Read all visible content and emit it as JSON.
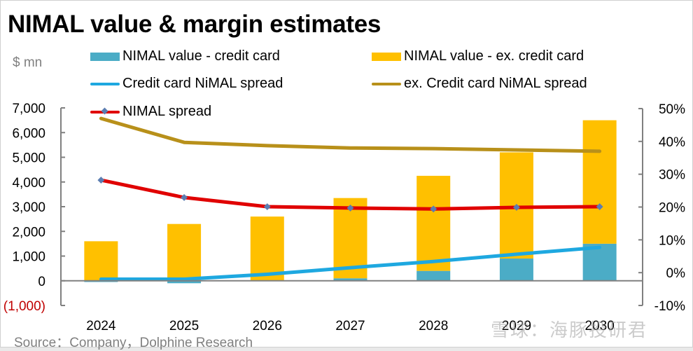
{
  "title": "NIMAL value & margin estimates",
  "unit_label": "$ mn",
  "footer": "Source：Company，Dolphine Research",
  "watermark": "雪球：海豚投研君",
  "legend": [
    {
      "label": "NIMAL value -  credit card",
      "type": "bar",
      "color": "#4bacc6"
    },
    {
      "label": "NIMAL value -  ex. credit card",
      "type": "bar",
      "color": "#ffc000"
    },
    {
      "label": "Credit card NiMAL spread",
      "type": "line",
      "color": "#1ea8e0"
    },
    {
      "label": "ex. Credit card NiMAL spread",
      "type": "line",
      "color": "#b8901a"
    },
    {
      "label": "NIMAL spread",
      "type": "line-marker",
      "color": "#e00000",
      "marker_color": "#5b7db1"
    }
  ],
  "chart_data": {
    "type": "bar",
    "title": "NIMAL value & margin estimates",
    "xlabel": "",
    "ylabel": "$ mn",
    "categories": [
      "2024",
      "2025",
      "2026",
      "2027",
      "2028",
      "2029",
      "2030"
    ],
    "y_left": {
      "range": [
        -1000,
        7000
      ],
      "ticks": [
        -1000,
        0,
        1000,
        2000,
        3000,
        4000,
        5000,
        6000,
        7000
      ],
      "tick_labels": [
        "(1,000)",
        "0",
        "1,000",
        "2,000",
        "3,000",
        "4,000",
        "5,000",
        "6,000",
        "7,000"
      ]
    },
    "y_right": {
      "range": [
        -0.1,
        0.5
      ],
      "ticks": [
        -0.1,
        0.0,
        0.1,
        0.2,
        0.3,
        0.4,
        0.5
      ],
      "tick_labels": [
        "-10%",
        "0%",
        "10%",
        "20%",
        "30%",
        "40%",
        "50%"
      ]
    },
    "grid": false,
    "legend_position": "top",
    "series": [
      {
        "name": "NIMAL value -  credit card",
        "type": "bar",
        "stack": "nimal",
        "axis": "left",
        "color": "#4bacc6",
        "values": [
          -50,
          -100,
          0,
          100,
          400,
          900,
          1500
        ]
      },
      {
        "name": "NIMAL value -  ex. credit card",
        "type": "bar",
        "stack": "nimal",
        "axis": "left",
        "color": "#ffc000",
        "values": [
          1600,
          2300,
          2600,
          3250,
          3850,
          4300,
          5000
        ]
      },
      {
        "name": "Credit card NiMAL spread",
        "type": "line",
        "axis": "right",
        "color": "#1ea8e0",
        "values": [
          -0.02,
          -0.02,
          -0.005,
          0.015,
          0.034,
          0.056,
          0.077
        ]
      },
      {
        "name": "ex. Credit card NiMAL spread",
        "type": "line",
        "axis": "right",
        "color": "#b8901a",
        "values": [
          0.47,
          0.397,
          0.387,
          0.38,
          0.378,
          0.374,
          0.37
        ]
      },
      {
        "name": "NIMAL spread",
        "type": "line",
        "axis": "right",
        "color": "#e00000",
        "marker": "diamond",
        "marker_color": "#5b7db1",
        "values": [
          0.282,
          0.229,
          0.201,
          0.197,
          0.194,
          0.199,
          0.201
        ]
      }
    ]
  }
}
